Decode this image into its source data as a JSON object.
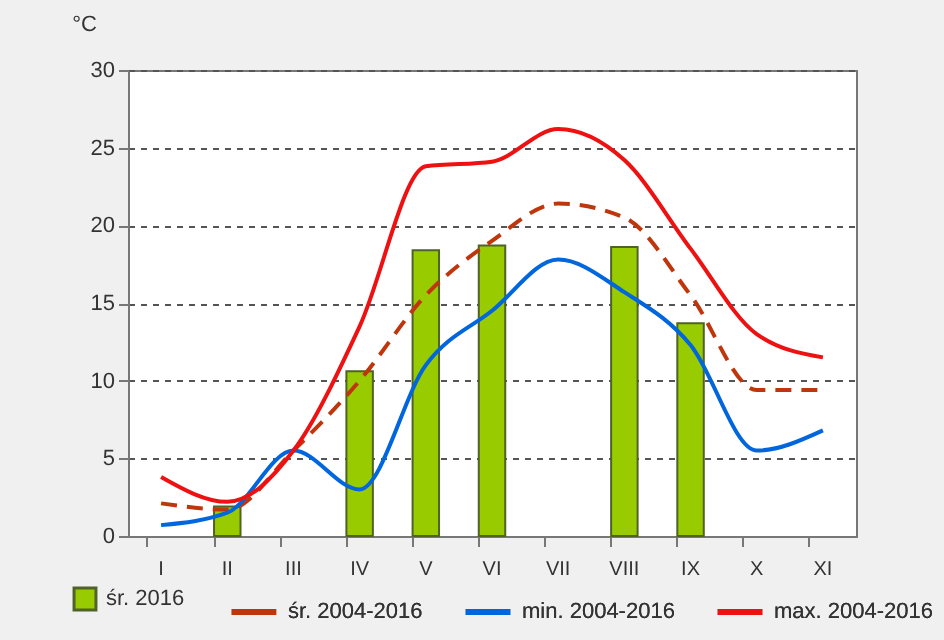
{
  "chart_data": {
    "type": "bar",
    "ylabel": "°C",
    "categories": [
      "I",
      "II",
      "III",
      "IV",
      "V",
      "VI",
      "VII",
      "VIII",
      "IX",
      "X",
      "XI"
    ],
    "series": [
      {
        "name": "śr. 2016",
        "color": "#99cc00",
        "values": [
          null,
          1.9,
          null,
          10.6,
          18.4,
          18.7,
          null,
          18.6,
          13.7,
          null,
          null
        ]
      },
      {
        "name": "śr. 2004-2016",
        "type": "line",
        "line_style": "dashed",
        "color": "#c0360c",
        "values": [
          2.1,
          1.7,
          5.5,
          10.0,
          15.5,
          19.0,
          21.4,
          20.5,
          15.5,
          9.4,
          9.4
        ]
      },
      {
        "name": "min. 2004-2016",
        "type": "line",
        "line_style": "solid",
        "color": "#0066dd",
        "values": [
          0.7,
          1.5,
          5.5,
          3.0,
          11.0,
          14.5,
          17.8,
          15.7,
          12.3,
          5.5,
          6.8
        ]
      },
      {
        "name": "max. 2004-2016",
        "type": "line",
        "line_style": "solid",
        "color": "#ee1111",
        "values": [
          3.8,
          2.2,
          5.5,
          13.5,
          23.8,
          24.1,
          26.2,
          24.2,
          18.5,
          13.0,
          11.5
        ]
      }
    ],
    "ylim": [
      0,
      30
    ],
    "yticks": [
      0,
      5,
      10,
      15,
      20,
      25,
      30
    ],
    "grid": "y",
    "legend": "bottom"
  }
}
